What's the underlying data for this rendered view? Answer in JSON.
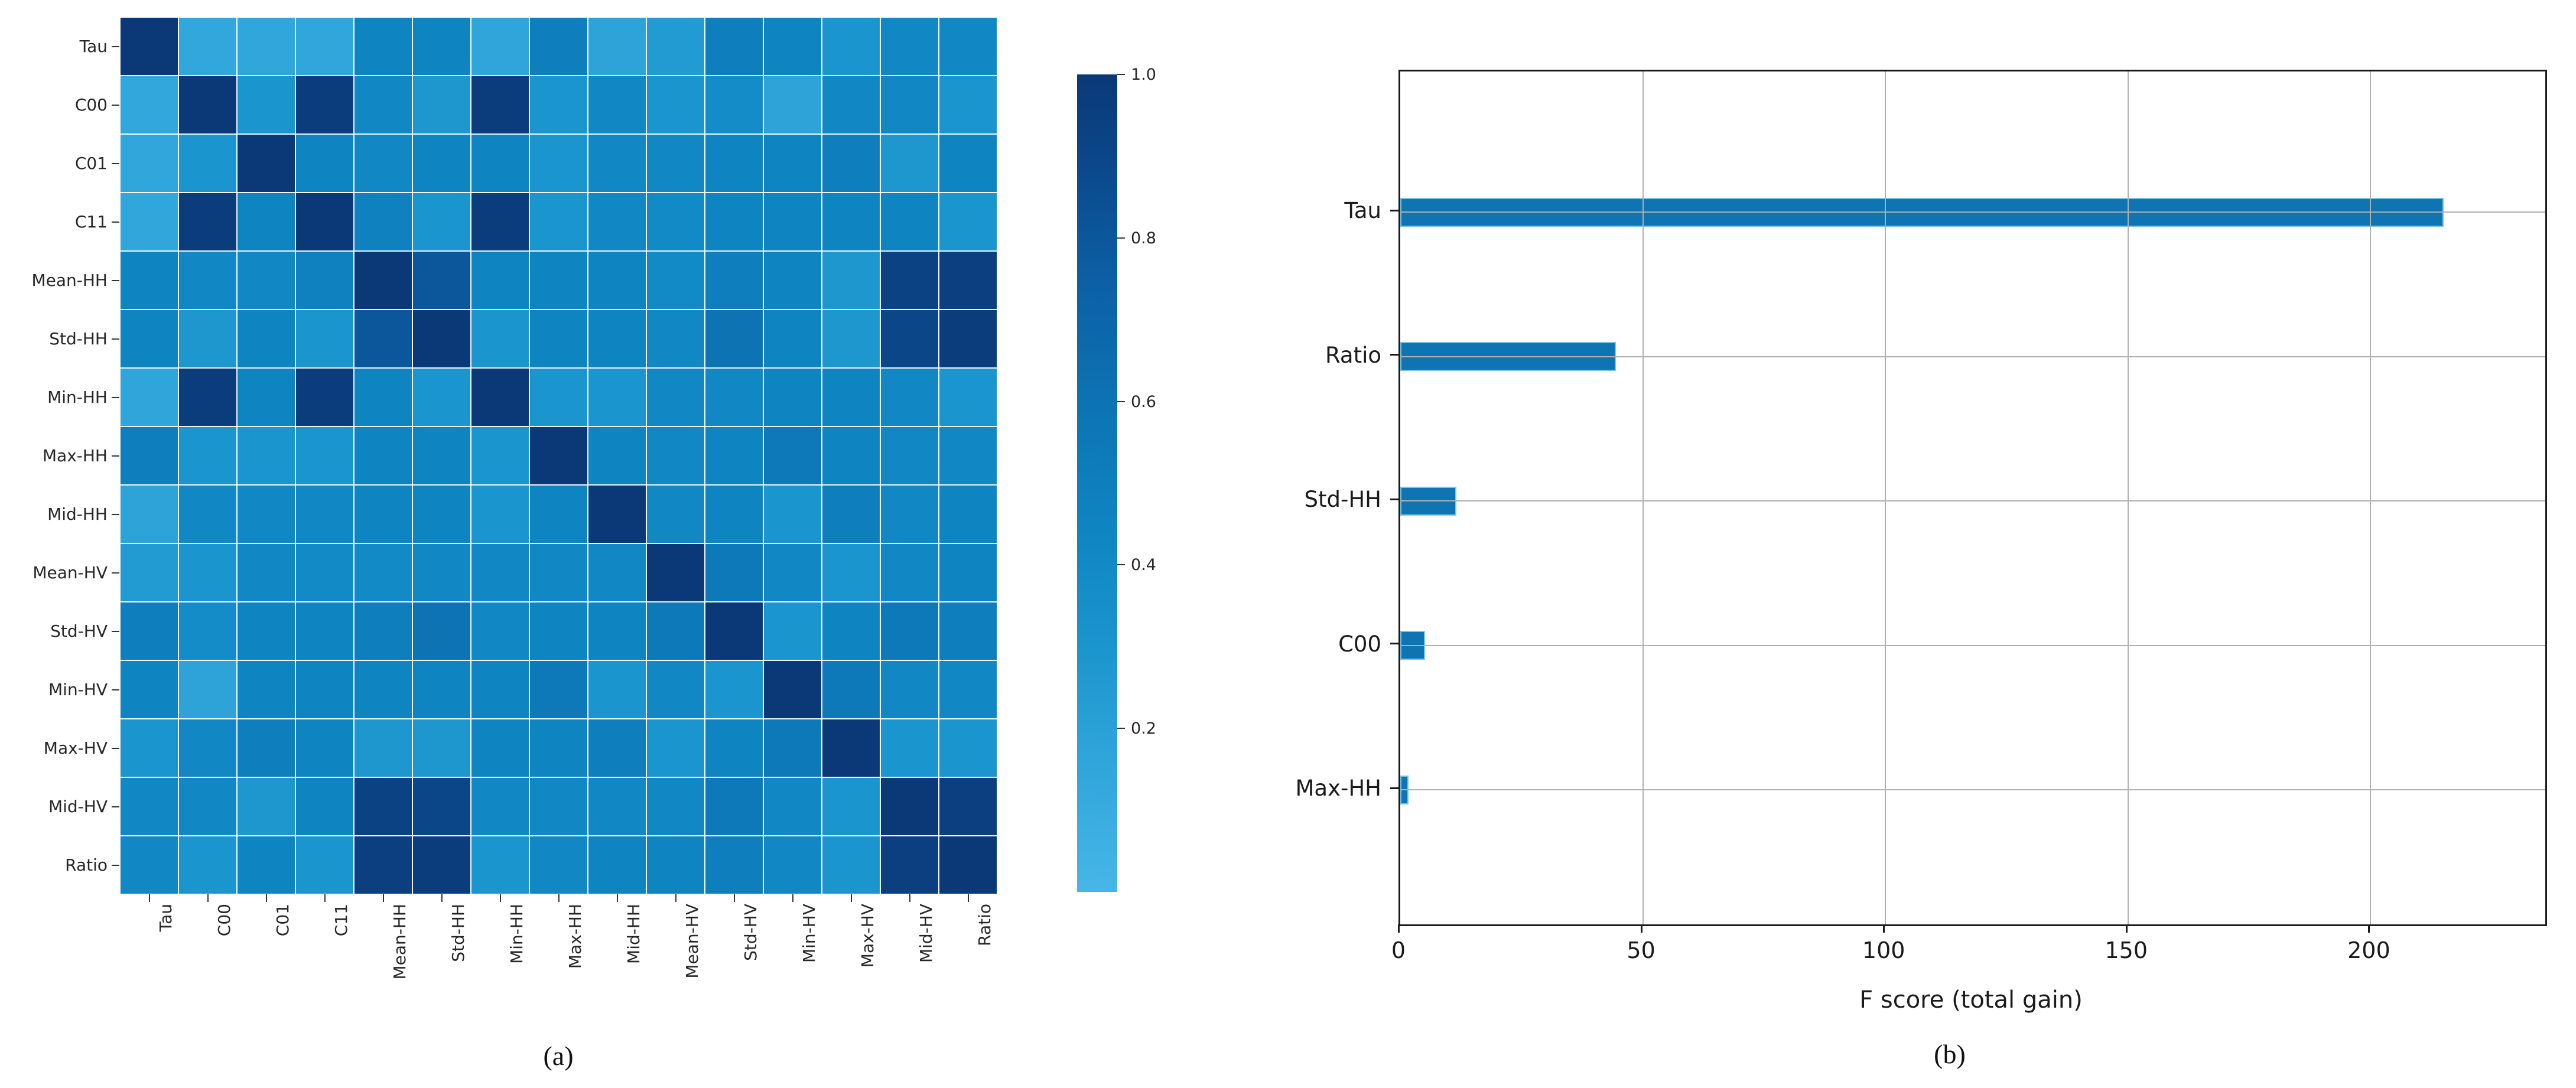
{
  "figure": {
    "panel_a_caption": "(a)",
    "panel_b_caption": "(b)"
  },
  "chart_data": [
    {
      "type": "heatmap",
      "title": "",
      "labels": [
        "Tau",
        "C00",
        "C01",
        "C11",
        "Mean-HH",
        "Std-HH",
        "Min-HH",
        "Max-HH",
        "Mid-HH",
        "Mean-HV",
        "Std-HV",
        "Min-HV",
        "Max-HV",
        "Mid-HV",
        "Ratio"
      ],
      "matrix": [
        [
          1.0,
          0.14,
          0.15,
          0.15,
          0.45,
          0.45,
          0.16,
          0.5,
          0.18,
          0.25,
          0.5,
          0.45,
          0.3,
          0.42,
          0.42
        ],
        [
          0.14,
          1.0,
          0.3,
          0.97,
          0.42,
          0.28,
          0.97,
          0.3,
          0.42,
          0.3,
          0.38,
          0.18,
          0.42,
          0.42,
          0.3
        ],
        [
          0.15,
          0.3,
          1.0,
          0.45,
          0.42,
          0.45,
          0.45,
          0.3,
          0.42,
          0.42,
          0.45,
          0.45,
          0.5,
          0.28,
          0.45
        ],
        [
          0.15,
          0.97,
          0.45,
          1.0,
          0.48,
          0.3,
          0.97,
          0.3,
          0.42,
          0.4,
          0.45,
          0.45,
          0.45,
          0.45,
          0.3
        ],
        [
          0.45,
          0.42,
          0.42,
          0.48,
          1.0,
          0.8,
          0.45,
          0.45,
          0.45,
          0.4,
          0.5,
          0.45,
          0.28,
          0.93,
          0.95
        ],
        [
          0.45,
          0.28,
          0.45,
          0.3,
          0.8,
          1.0,
          0.3,
          0.45,
          0.45,
          0.42,
          0.6,
          0.45,
          0.28,
          0.9,
          0.97
        ],
        [
          0.16,
          0.97,
          0.45,
          0.97,
          0.45,
          0.3,
          1.0,
          0.3,
          0.3,
          0.42,
          0.42,
          0.45,
          0.45,
          0.42,
          0.3
        ],
        [
          0.5,
          0.3,
          0.3,
          0.3,
          0.45,
          0.45,
          0.3,
          1.0,
          0.45,
          0.42,
          0.45,
          0.55,
          0.45,
          0.42,
          0.42
        ],
        [
          0.18,
          0.42,
          0.42,
          0.42,
          0.45,
          0.45,
          0.3,
          0.45,
          1.0,
          0.42,
          0.45,
          0.3,
          0.5,
          0.42,
          0.45
        ],
        [
          0.25,
          0.3,
          0.42,
          0.4,
          0.4,
          0.42,
          0.42,
          0.42,
          0.42,
          1.0,
          0.55,
          0.42,
          0.3,
          0.42,
          0.45
        ],
        [
          0.5,
          0.38,
          0.45,
          0.45,
          0.5,
          0.6,
          0.42,
          0.45,
          0.45,
          0.55,
          1.0,
          0.3,
          0.45,
          0.55,
          0.5
        ],
        [
          0.45,
          0.18,
          0.45,
          0.45,
          0.45,
          0.45,
          0.45,
          0.55,
          0.3,
          0.42,
          0.3,
          1.0,
          0.55,
          0.42,
          0.42
        ],
        [
          0.3,
          0.42,
          0.5,
          0.45,
          0.28,
          0.28,
          0.45,
          0.45,
          0.5,
          0.3,
          0.45,
          0.55,
          1.0,
          0.3,
          0.3
        ],
        [
          0.42,
          0.42,
          0.28,
          0.45,
          0.93,
          0.9,
          0.42,
          0.42,
          0.42,
          0.42,
          0.55,
          0.42,
          0.3,
          1.0,
          0.95
        ],
        [
          0.42,
          0.3,
          0.45,
          0.3,
          0.95,
          0.97,
          0.3,
          0.42,
          0.45,
          0.45,
          0.5,
          0.42,
          0.3,
          0.95,
          1.0
        ]
      ],
      "colormap_stops": [
        [
          0.0,
          "#47b6e7"
        ],
        [
          0.15,
          "#31a6db"
        ],
        [
          0.3,
          "#1b95cd"
        ],
        [
          0.45,
          "#0e84c1"
        ],
        [
          0.6,
          "#0d73b3"
        ],
        [
          0.75,
          "#0c5fa4"
        ],
        [
          0.9,
          "#0b4689"
        ],
        [
          1.0,
          "#0b3876"
        ]
      ],
      "colorbar": {
        "tick_labels": [
          "1.0",
          "0.8",
          "0.6",
          "0.4",
          "0.2"
        ],
        "tick_values": [
          1.0,
          0.8,
          0.6,
          0.4,
          0.2
        ],
        "vmin": 0.0,
        "vmax": 1.0
      }
    },
    {
      "type": "bar",
      "orientation": "horizontal",
      "categories": [
        "Tau",
        "Ratio",
        "Std-HH",
        "C00",
        "Max-HH"
      ],
      "values": [
        215,
        44.5,
        11.6,
        5.1,
        1.7
      ],
      "xlabel": "F score (total gain)",
      "xticks": [
        0,
        50,
        100,
        150,
        200
      ],
      "xtick_labels": [
        "0",
        "50",
        "100",
        "150",
        "200"
      ],
      "xlim": [
        0,
        236
      ],
      "bar_color": "#0e74b2",
      "grid": true,
      "legend": null
    }
  ]
}
